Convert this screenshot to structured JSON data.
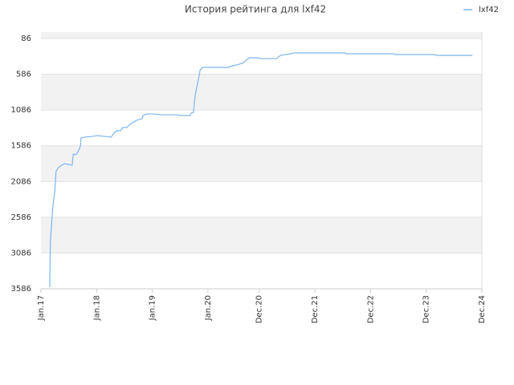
{
  "chart_data": {
    "type": "line",
    "title": "История рейтинга для lxf42",
    "x": [
      2017.16,
      2017.16,
      2017.17,
      2017.2,
      2017.22,
      2017.25,
      2017.26,
      2017.27,
      2017.3,
      2017.35,
      2017.42,
      2017.49,
      2017.56,
      2017.58,
      2017.62,
      2017.66,
      2017.71,
      2017.72,
      2017.78,
      2017.92,
      2018.02,
      2018.14,
      2018.26,
      2018.31,
      2018.36,
      2018.43,
      2018.47,
      2018.54,
      2018.6,
      2018.69,
      2018.75,
      2018.82,
      2018.83,
      2018.9,
      2019.01,
      2019.15,
      2019.44,
      2019.51,
      2019.68,
      2019.7,
      2019.74,
      2019.76,
      2019.78,
      2019.81,
      2019.84,
      2019.86,
      2019.9,
      2020.02,
      2020.38,
      2020.39,
      2020.45,
      2020.56,
      2020.64,
      2020.69,
      2020.74,
      2020.88,
      2020.95,
      2021.24,
      2021.26,
      2021.31,
      2021.39,
      2021.49,
      2021.55,
      2021.75,
      2022.47,
      2022.48,
      2023.33,
      2023.35,
      2024.06,
      2024.11,
      2024.75
    ],
    "series": [
      {
        "name": "lxf42",
        "color": "#7cb5ec",
        "values": [
          3564,
          3385,
          2913,
          2577,
          2386,
          2218,
          2072,
          1949,
          1904,
          1870,
          1836,
          1847,
          1859,
          1702,
          1713,
          1679,
          1589,
          1477,
          1466,
          1455,
          1444,
          1455,
          1466,
          1410,
          1376,
          1376,
          1331,
          1331,
          1287,
          1242,
          1219,
          1208,
          1163,
          1141,
          1141,
          1152,
          1152,
          1163,
          1163,
          1129,
          1118,
          950,
          838,
          726,
          613,
          524,
          490,
          490,
          490,
          479,
          467,
          445,
          423,
          389,
          355,
          355,
          367,
          367,
          344,
          321,
          310,
          299,
          288,
          288,
          288,
          299,
          299,
          310,
          310,
          321,
          321
        ]
      }
    ],
    "xlim": [
      2017.0,
      2024.92
    ],
    "xticks": [
      {
        "value": 2017.0,
        "label": "Jan.17"
      },
      {
        "value": 2018.0,
        "label": "Jan.18"
      },
      {
        "value": 2019.0,
        "label": "Jan.19"
      },
      {
        "value": 2020.0,
        "label": "Jan.20"
      },
      {
        "value": 2020.92,
        "label": "Dec.20"
      },
      {
        "value": 2021.92,
        "label": "Dec.21"
      },
      {
        "value": 2022.92,
        "label": "Dec.22"
      },
      {
        "value": 2023.92,
        "label": "Dec.23"
      },
      {
        "value": 2024.92,
        "label": "Dec.24"
      }
    ],
    "ylim": [
      -4,
      3586
    ],
    "y_inverted": true,
    "yticks": [
      86,
      586,
      1086,
      1586,
      2086,
      2586,
      3086,
      3586
    ],
    "grid": true,
    "band_color": "#f2f2f2",
    "legend": "top-right"
  }
}
